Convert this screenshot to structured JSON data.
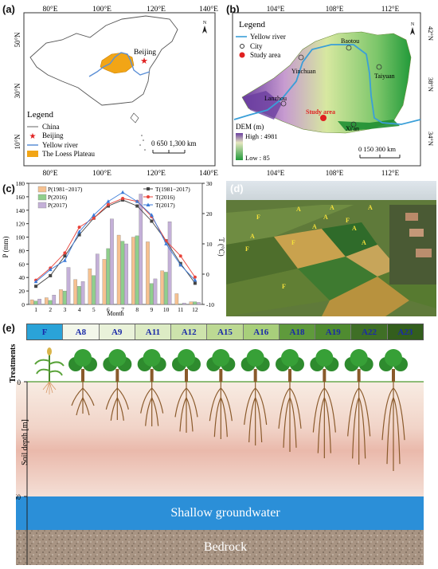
{
  "panel_a": {
    "letter": "(a)",
    "lon_ticks": [
      "80°E",
      "100°E",
      "120°E",
      "140°E"
    ],
    "lat_ticks": [
      "50°N",
      "30°N",
      "10°N"
    ],
    "city": "Beijing",
    "north": "N",
    "legend_title": "Legend",
    "legend_items": [
      "China",
      "Beijing",
      "Yellow river",
      "The Loess Plateau"
    ],
    "scale_text": "0  650 1,300 km",
    "colors": {
      "plateau": "#f2a516",
      "river": "#5b8fd6",
      "beijing": "#e02020"
    }
  },
  "panel_b": {
    "letter": "(b)",
    "lon_ticks": [
      "104°E",
      "108°E",
      "112°E"
    ],
    "lat_ticks_right": [
      "42°N",
      "38°N",
      "34°N"
    ],
    "lat_ticks_left": [
      "42°N",
      "38°N",
      "34°N"
    ],
    "north": "N",
    "legend_title": "Legend",
    "legend_items": [
      "Yellow river",
      "City",
      "Study area"
    ],
    "cities": [
      "Baotou",
      "Yinchuan",
      "Taiyuan",
      "Lanzhou",
      "Xi'an"
    ],
    "study_area": "Study area",
    "dem_title": "DEM (m)",
    "dem_high": "High : 4981",
    "dem_low": "Low : 85",
    "scale_text": "0  150  300 km"
  },
  "panel_c": {
    "letter": "(c)",
    "chart_data": {
      "type": "bar",
      "categories": [
        "1",
        "2",
        "3",
        "4",
        "5",
        "6",
        "7",
        "8",
        "9",
        "10",
        "11",
        "12"
      ],
      "xlabel": "Month",
      "ylabel": "P (mm)",
      "y2label": "T (°C)",
      "ylim": [
        0,
        180
      ],
      "y2lim": [
        -10,
        30
      ],
      "yticks": [
        "0",
        "20",
        "40",
        "60",
        "80",
        "100",
        "120",
        "140",
        "160",
        "180"
      ],
      "y2ticks": [
        "-10",
        "0",
        "10",
        "20",
        "30"
      ],
      "series": [
        {
          "name": "P(1981−2017)",
          "color": "#f6c190",
          "values": [
            7,
            10,
            22,
            37,
            53,
            67,
            103,
            100,
            93,
            50,
            16,
            4
          ]
        },
        {
          "name": "P(2016)",
          "color": "#8fcf8c",
          "values": [
            5,
            6,
            20,
            27,
            43,
            83,
            94,
            102,
            31,
            48,
            1,
            4
          ]
        },
        {
          "name": "P(2017)",
          "color": "#c4b0d8",
          "values": [
            8,
            14,
            55,
            34,
            75,
            127,
            90,
            164,
            38,
            123,
            2,
            3
          ]
        }
      ],
      "temp_series": [
        {
          "name": "T(1981−2017)",
          "color": "#444444",
          "marker": "square",
          "values": [
            -4,
            -0.5,
            6,
            13,
            18.5,
            22.5,
            24.5,
            22.5,
            17.5,
            11,
            3.5,
            -3
          ]
        },
        {
          "name": "T(2016)",
          "color": "#e8433a",
          "marker": "circle",
          "values": [
            -2,
            2,
            7,
            15.5,
            18.5,
            23,
            25,
            24,
            19,
            11,
            6,
            -1
          ]
        },
        {
          "name": "T(2017)",
          "color": "#3a7ad8",
          "marker": "triangle",
          "values": [
            -2.5,
            1.5,
            4.5,
            14,
            19.5,
            24,
            27,
            24,
            19.5,
            10,
            3,
            -2
          ]
        }
      ]
    }
  },
  "panel_d": {
    "letter": "(d)",
    "labels": [
      "F",
      "A",
      "A",
      "A",
      "F",
      "A",
      "A",
      "F",
      "A",
      "A",
      "F",
      "A",
      "F"
    ]
  },
  "panel_e": {
    "letter": "(e)",
    "axis_title": "Treatments",
    "treatments": [
      "F",
      "A8",
      "A9",
      "A11",
      "A12",
      "A15",
      "A16",
      "A18",
      "A19",
      "A22",
      "A23"
    ],
    "treatment_colors": [
      "#2aa3d8",
      "#f3f7ea",
      "#e9f2d9",
      "#dcebc4",
      "#cde3ac",
      "#bcd993",
      "#a8cf7b",
      "#5f9a3c",
      "#4f8b30",
      "#3f6f26",
      "#335e1d"
    ],
    "soil_axis": "Soil depth [m]",
    "depth_ticks": [
      "0",
      "50"
    ],
    "groundwater": "Shallow groundwater",
    "bedrock": "Bedrock"
  }
}
